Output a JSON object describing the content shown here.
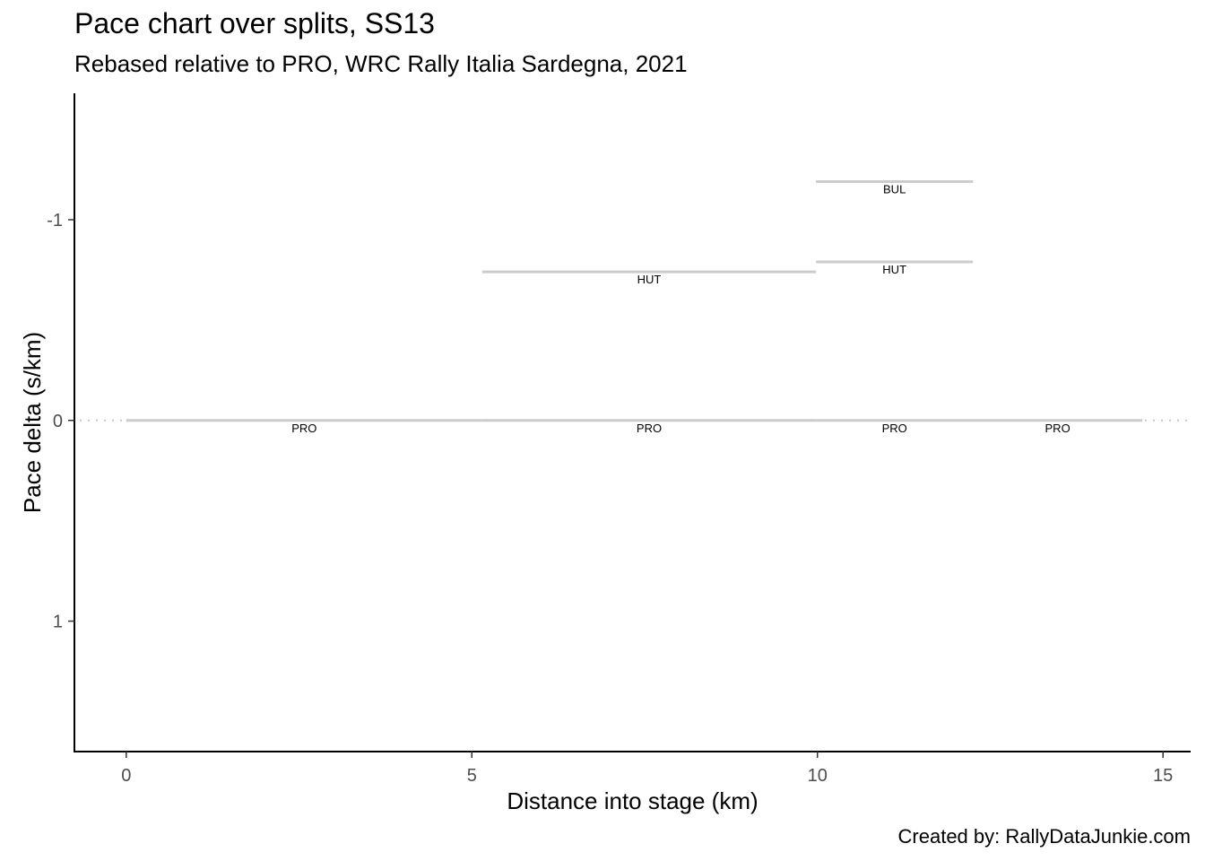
{
  "title": "Pace chart over splits, SS13",
  "subtitle": "Rebased relative to PRO, WRC Rally Italia Sardegna, 2021",
  "caption": "Created by: RallyDataJunkie.com",
  "chart_data": {
    "type": "line",
    "title": "Pace chart over splits, SS13",
    "subtitle": "Rebased relative to PRO, WRC Rally Italia Sardegna, 2021",
    "xlabel": "Distance into stage (km)",
    "ylabel": "Pace delta (s/km)",
    "xlim": [
      -0.75,
      15.4
    ],
    "ylim": [
      -1.63,
      1.65
    ],
    "y_reversed": true,
    "x_ticks": [
      {
        "value": 0,
        "label": "0"
      },
      {
        "value": 5,
        "label": "5"
      },
      {
        "value": 10,
        "label": "10"
      },
      {
        "value": 15,
        "label": "15"
      }
    ],
    "y_ticks": [
      {
        "value": -1,
        "label": "-1"
      },
      {
        "value": 0,
        "label": "0"
      },
      {
        "value": 1,
        "label": "1"
      }
    ],
    "reference_line": {
      "y": 0,
      "style": "dotted"
    },
    "grid": false,
    "legend": "none",
    "segment_color": "#cccccc",
    "segments": [
      {
        "driver": "PRO",
        "x_start": 0,
        "x_end": 5.15,
        "y": 0
      },
      {
        "driver": "PRO",
        "x_start": 5.15,
        "x_end": 9.98,
        "y": 0
      },
      {
        "driver": "PRO",
        "x_start": 9.98,
        "x_end": 12.25,
        "y": 0
      },
      {
        "driver": "PRO",
        "x_start": 12.25,
        "x_end": 14.7,
        "y": 0
      },
      {
        "driver": "HUT",
        "x_start": 5.15,
        "x_end": 9.98,
        "y": -0.74
      },
      {
        "driver": "HUT",
        "x_start": 9.98,
        "x_end": 12.25,
        "y": -0.79
      },
      {
        "driver": "BUL",
        "x_start": 9.98,
        "x_end": 12.25,
        "y": -1.19
      }
    ]
  }
}
